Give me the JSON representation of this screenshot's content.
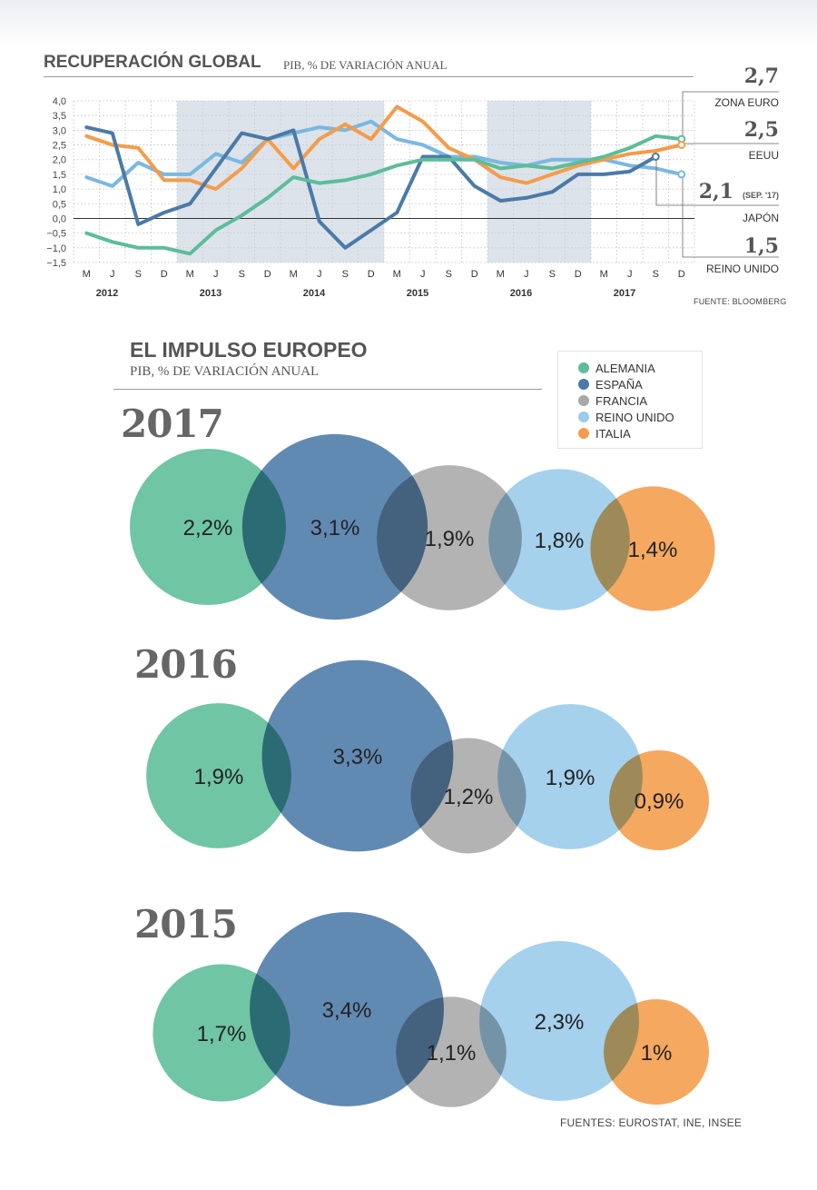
{
  "colors": {
    "alemania": "#5cbd98",
    "espana": "#4b7aa8",
    "francia": "#a8a8a8",
    "reino_unido": "#99cbeb",
    "italia": "#f49c4a",
    "japon": "#7ab8e0"
  },
  "chart_data": [
    {
      "type": "line",
      "title": "RECUPERACIÓN GLOBAL",
      "subtitle": "PIB, % DE VARIACIÓN ANUAL",
      "x": [
        "M",
        "J",
        "S",
        "D",
        "M",
        "J",
        "S",
        "D",
        "M",
        "J",
        "S",
        "D",
        "M",
        "J",
        "S",
        "D",
        "M",
        "J",
        "S",
        "D",
        "M",
        "J",
        "S",
        "D"
      ],
      "x_groups": [
        "2012",
        "2013",
        "2014",
        "2015",
        "2016",
        "2017"
      ],
      "y_ticks": [
        "4,0",
        "3,5",
        "3,0",
        "2,5",
        "2,0",
        "1,5",
        "1,0",
        "0,5",
        "0,0",
        "−0,5",
        "−1,0",
        "−1,5"
      ],
      "ylim": [
        -1.5,
        4.0
      ],
      "grid": true,
      "series": [
        {
          "name": "ZONA EURO",
          "color_key": "alemania",
          "end_value": "2,7",
          "values": [
            -0.5,
            -0.8,
            -1.0,
            -1.0,
            -1.2,
            -0.4,
            0.1,
            0.7,
            1.4,
            1.2,
            1.3,
            1.5,
            1.8,
            2.0,
            2.0,
            2.0,
            1.7,
            1.8,
            1.7,
            1.9,
            2.1,
            2.4,
            2.8,
            2.7
          ]
        },
        {
          "name": "EEUU",
          "color_key": "italia",
          "end_value": "2,5",
          "values": [
            2.8,
            2.5,
            2.4,
            1.3,
            1.3,
            1.0,
            1.7,
            2.7,
            1.7,
            2.7,
            3.2,
            2.7,
            3.8,
            3.3,
            2.4,
            2.0,
            1.4,
            1.2,
            1.5,
            1.8,
            2.0,
            2.2,
            2.3,
            2.5
          ]
        },
        {
          "name": "JAPÓN",
          "color_key": "espana",
          "end_value": "2,1",
          "end_note": "(SEP. '17)",
          "values": [
            3.1,
            2.9,
            -0.2,
            0.2,
            0.5,
            1.7,
            2.9,
            2.7,
            3.0,
            -0.1,
            -1.0,
            -0.4,
            0.2,
            2.1,
            2.1,
            1.1,
            0.6,
            0.7,
            0.9,
            1.5,
            1.5,
            1.6,
            2.1,
            null
          ]
        },
        {
          "name": "REINO UNIDO",
          "color_key": "japon",
          "end_value": "1,5",
          "values": [
            1.4,
            1.1,
            1.9,
            1.5,
            1.5,
            2.2,
            1.9,
            2.7,
            2.9,
            3.1,
            3.0,
            3.3,
            2.7,
            2.5,
            2.1,
            2.1,
            1.9,
            1.8,
            2.0,
            2.0,
            2.0,
            1.8,
            1.7,
            1.5
          ]
        }
      ],
      "source": "FUENTE: BLOOMBERG"
    },
    {
      "type": "bubble",
      "title": "EL IMPULSO EUROPEO",
      "subtitle": "PIB, % DE VARIACIÓN ANUAL",
      "legend": [
        {
          "name": "ALEMANIA",
          "color_key": "alemania"
        },
        {
          "name": "ESPAÑA",
          "color_key": "espana"
        },
        {
          "name": "FRANCIA",
          "color_key": "francia"
        },
        {
          "name": "REINO UNIDO",
          "color_key": "reino_unido"
        },
        {
          "name": "ITALIA",
          "color_key": "italia"
        }
      ],
      "years": [
        {
          "year": "2017",
          "values": [
            {
              "country": "ALEMANIA",
              "value": 2.2,
              "label": "2,2%"
            },
            {
              "country": "ESPAÑA",
              "value": 3.1,
              "label": "3,1%"
            },
            {
              "country": "FRANCIA",
              "value": 1.9,
              "label": "1,9%"
            },
            {
              "country": "REINO UNIDO",
              "value": 1.8,
              "label": "1,8%"
            },
            {
              "country": "ITALIA",
              "value": 1.4,
              "label": "1,4%"
            }
          ]
        },
        {
          "year": "2016",
          "values": [
            {
              "country": "ALEMANIA",
              "value": 1.9,
              "label": "1,9%"
            },
            {
              "country": "ESPAÑA",
              "value": 3.3,
              "label": "3,3%"
            },
            {
              "country": "FRANCIA",
              "value": 1.2,
              "label": "1,2%"
            },
            {
              "country": "REINO UNIDO",
              "value": 1.9,
              "label": "1,9%"
            },
            {
              "country": "ITALIA",
              "value": 0.9,
              "label": "0,9%"
            }
          ]
        },
        {
          "year": "2015",
          "values": [
            {
              "country": "ALEMANIA",
              "value": 1.7,
              "label": "1,7%"
            },
            {
              "country": "ESPAÑA",
              "value": 3.4,
              "label": "3,4%"
            },
            {
              "country": "FRANCIA",
              "value": 1.1,
              "label": "1,1%"
            },
            {
              "country": "REINO UNIDO",
              "value": 2.3,
              "label": "2,3%"
            },
            {
              "country": "ITALIA",
              "value": 1.0,
              "label": "1%"
            }
          ]
        }
      ],
      "source": "FUENTES: EUROSTAT, INE, INSEE"
    }
  ]
}
